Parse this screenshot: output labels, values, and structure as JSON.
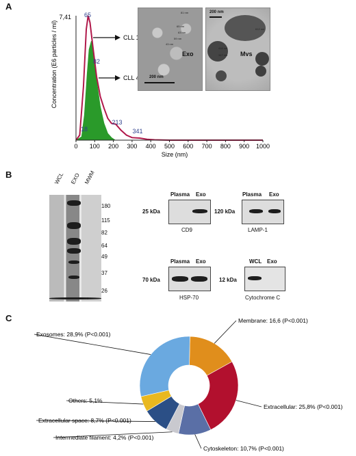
{
  "panel_a": {
    "letter": "A",
    "ylabel": "Concentration (E6 particles / ml)",
    "xlabel": "Size (nm)",
    "y_top_label": "7,41",
    "peaks": [
      "65",
      "82",
      "213",
      "341",
      "18"
    ],
    "arrows": [
      "CLL 1",
      "CLL 4"
    ],
    "em_exo": {
      "label": "Exo",
      "scale": "200 nm",
      "measures": [
        "81 nm",
        "65 nm",
        "63 nm",
        "59 nm",
        "43 nm"
      ]
    },
    "em_mvs": {
      "label": "Mvs",
      "scale": "200 nm",
      "measures": [
        "612 nm",
        "416 nm",
        "347 nm"
      ]
    }
  },
  "chart_data": {
    "type": "area",
    "xlabel": "Size (nm)",
    "ylabel": "Concentration (E6 particles / ml)",
    "xlim": [
      0,
      1000
    ],
    "ylim": [
      0,
      7.41
    ],
    "xticks": [
      0,
      100,
      200,
      300,
      400,
      500,
      600,
      700,
      800,
      900,
      1000
    ],
    "series": [
      {
        "name": "CLL 1",
        "color": "#b0184a",
        "x": [
          0,
          20,
          40,
          55,
          65,
          75,
          90,
          110,
          130,
          150,
          170,
          190,
          213,
          240,
          270,
          300,
          341,
          380,
          420,
          500,
          700,
          1000
        ],
        "y": [
          0,
          0.3,
          3.2,
          6.6,
          7.41,
          7.0,
          5.6,
          3.8,
          2.6,
          1.9,
          1.3,
          1.0,
          0.95,
          0.6,
          0.3,
          0.15,
          0.12,
          0.05,
          0.02,
          0,
          0,
          0
        ]
      },
      {
        "name": "CLL 4",
        "color": "#2a9a2a",
        "x": [
          0,
          30,
          45,
          60,
          70,
          82,
          95,
          110,
          130,
          150,
          170,
          190,
          210
        ],
        "y": [
          0,
          0.2,
          1.5,
          4.0,
          5.4,
          5.9,
          5.3,
          3.6,
          2.0,
          1.0,
          0.4,
          0.15,
          0
        ]
      }
    ]
  },
  "panel_b": {
    "letter": "B",
    "gel_lanes": [
      "WCL",
      "EXO",
      "MWM"
    ],
    "mw_markers": [
      "180",
      "115",
      "82",
      "64",
      "49",
      "37",
      "26"
    ],
    "blots": [
      {
        "cols": [
          "Plasma",
          "Exo"
        ],
        "kda": "25 kDa",
        "caption": "CD9"
      },
      {
        "cols": [
          "Plasma",
          "Exo"
        ],
        "kda": "120 kDa",
        "caption": "LAMP-1"
      },
      {
        "cols": [
          "Plasma",
          "Exo"
        ],
        "kda": "70 kDa",
        "caption": "HSP-70"
      },
      {
        "cols": [
          "WCL",
          "Exo"
        ],
        "kda": "12 kDa",
        "caption": "Cytochrome C"
      }
    ]
  },
  "panel_c": {
    "letter": "C",
    "donut": [
      {
        "label": "Membrane: 16,6 (P<0.001)",
        "value": 16.6,
        "color": "#e08e1c"
      },
      {
        "label": "Extracellular: 25,8% (P<0.001)",
        "value": 25.8,
        "color": "#b2102e"
      },
      {
        "label": "Cytoskeleton: 10,7% (P<0.001)",
        "value": 10.7,
        "color": "#5a6fa6"
      },
      {
        "label": "Intermediate filament: 4,2% (P<0.001)",
        "value": 4.2,
        "color": "#c9c9cf"
      },
      {
        "label": "Extracellular space: 8,7% (P<0.001)",
        "value": 8.7,
        "color": "#2b4f86"
      },
      {
        "label": "Others: 5,1%",
        "value": 5.1,
        "color": "#e9b81f"
      },
      {
        "label": "Exosomes: 28,9% (P<0.001)",
        "value": 28.9,
        "color": "#6aa9e0"
      }
    ]
  }
}
